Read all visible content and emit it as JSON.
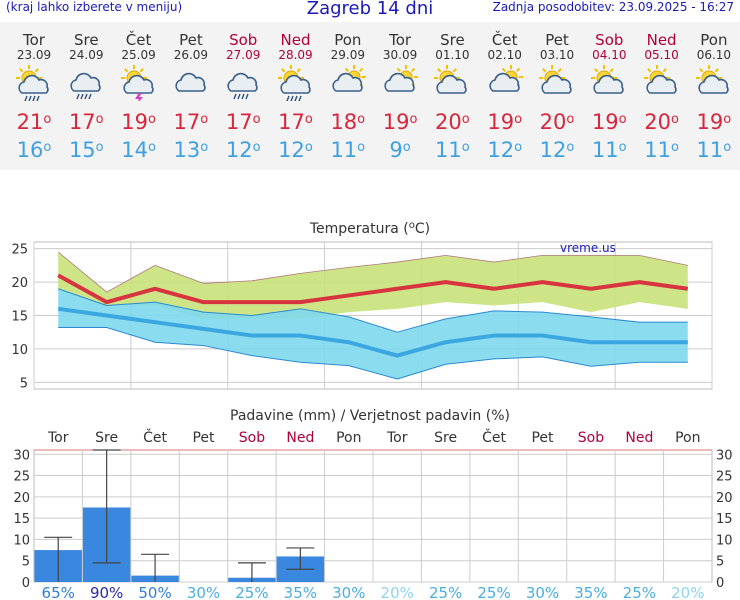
{
  "header": {
    "left_note": "(kraj lahko izberete v meniju)",
    "title": "Zagreb 14 dni",
    "updated": "Zadnja posodobitev: 23.09.2025 - 16:27"
  },
  "degree_symbol": "o",
  "days": [
    {
      "name": "Tor",
      "date": "23.09",
      "icon": "sun-cloud-rain-icon",
      "max": "21",
      "min": "16",
      "weekend": false
    },
    {
      "name": "Sre",
      "date": "24.09",
      "icon": "cloud-rain-icon",
      "max": "17",
      "min": "15",
      "weekend": false
    },
    {
      "name": "Čet",
      "date": "25.09",
      "icon": "sun-cloud-storm-icon",
      "max": "19",
      "min": "14",
      "weekend": false
    },
    {
      "name": "Pet",
      "date": "26.09",
      "icon": "cloud-icon",
      "max": "17",
      "min": "13",
      "weekend": false
    },
    {
      "name": "Sob",
      "date": "27.09",
      "icon": "cloud-rain-icon",
      "max": "17",
      "min": "12",
      "weekend": true
    },
    {
      "name": "Ned",
      "date": "28.09",
      "icon": "sun-cloud-rain-icon",
      "max": "17",
      "min": "12",
      "weekend": true
    },
    {
      "name": "Pon",
      "date": "29.09",
      "icon": "cloud-sun-icon",
      "max": "18",
      "min": "11",
      "weekend": false
    },
    {
      "name": "Tor",
      "date": "30.09",
      "icon": "cloud-sun-icon",
      "max": "19",
      "min": "9",
      "weekend": false
    },
    {
      "name": "Sre",
      "date": "01.10",
      "icon": "sun-cloud-icon",
      "max": "20",
      "min": "11",
      "weekend": false
    },
    {
      "name": "Čet",
      "date": "02.10",
      "icon": "cloud-sun-icon",
      "max": "19",
      "min": "12",
      "weekend": false
    },
    {
      "name": "Pet",
      "date": "03.10",
      "icon": "sun-cloud-icon",
      "max": "20",
      "min": "12",
      "weekend": false
    },
    {
      "name": "Sob",
      "date": "04.10",
      "icon": "sun-cloud-icon",
      "max": "19",
      "min": "11",
      "weekend": true
    },
    {
      "name": "Ned",
      "date": "05.10",
      "icon": "sun-cloud-icon",
      "max": "20",
      "min": "11",
      "weekend": true
    },
    {
      "name": "Pon",
      "date": "06.10",
      "icon": "sun-cloud-icon",
      "max": "19",
      "min": "11",
      "weekend": false
    }
  ],
  "colors": {
    "max_line": "#d7343f",
    "min_line": "#3ba7e0",
    "max_band": "#c8e27a",
    "min_band": "#7fd8ee",
    "overlap": "#7cc67c",
    "bar": "#3a87e0",
    "weekend": "#b0003a",
    "grid": "#cccccc"
  },
  "chart_data": [
    {
      "type": "area",
      "title": "Temperatura (°C)",
      "title_text": "Temperatura (",
      "title_unit": "C)",
      "watermark": "vreme.us",
      "ylim": [
        4,
        26
      ],
      "yticks": [
        5,
        10,
        15,
        20,
        25
      ],
      "x": [
        "23.09",
        "24.09",
        "25.09",
        "26.09",
        "27.09",
        "28.09",
        "29.09",
        "30.09",
        "01.10",
        "02.10",
        "03.10",
        "04.10",
        "05.10",
        "06.10"
      ],
      "series": [
        {
          "name": "max",
          "values": [
            21,
            17,
            19,
            17,
            17,
            17,
            18,
            19,
            20,
            19,
            20,
            19,
            20,
            19
          ]
        },
        {
          "name": "max_high",
          "values": [
            24.5,
            18.5,
            22.5,
            19.8,
            20.2,
            21.3,
            22.2,
            23.0,
            24.0,
            23.0,
            24.0,
            24.0,
            24.0,
            22.5
          ]
        },
        {
          "name": "max_low",
          "values": [
            18.8,
            16.5,
            16.5,
            14.5,
            14.5,
            14.5,
            15.5,
            16.0,
            17.0,
            16.5,
            17.0,
            15.5,
            17.0,
            16.0
          ]
        },
        {
          "name": "min",
          "values": [
            16,
            15,
            14,
            13,
            12,
            12,
            11,
            9,
            11,
            12,
            12,
            11,
            11,
            11
          ]
        },
        {
          "name": "min_high",
          "values": [
            19.0,
            16.5,
            17.0,
            15.5,
            15.0,
            16.0,
            14.8,
            12.5,
            14.5,
            15.7,
            15.5,
            14.8,
            14.0,
            14.0
          ]
        },
        {
          "name": "min_low",
          "values": [
            13.2,
            13.2,
            11.0,
            10.5,
            9.0,
            8.0,
            7.5,
            5.5,
            7.7,
            8.5,
            8.8,
            7.4,
            8.0,
            8.0
          ]
        }
      ]
    },
    {
      "type": "bar",
      "title": "Padavine (mm) / Verjetnost padavin (%)",
      "categories": [
        "Tor",
        "Sre",
        "Čet",
        "Pet",
        "Sob",
        "Ned",
        "Pon",
        "Tor",
        "Sre",
        "Čet",
        "Pet",
        "Sob",
        "Ned",
        "Pon"
      ],
      "weekend": [
        false,
        false,
        false,
        false,
        true,
        true,
        false,
        false,
        false,
        false,
        false,
        true,
        true,
        false
      ],
      "values": [
        7.5,
        17.5,
        1.5,
        0,
        1.0,
        6.0,
        0,
        0,
        0,
        0,
        0,
        0,
        0,
        0
      ],
      "err_low": [
        0,
        4.5,
        0,
        0,
        0,
        3.0,
        0,
        0,
        0,
        0,
        0,
        0,
        0,
        0
      ],
      "err_high": [
        10.5,
        31,
        6.5,
        0,
        4.5,
        8.0,
        0,
        0,
        0,
        0,
        0,
        0,
        0,
        0
      ],
      "probability": [
        "65%",
        "90%",
        "50%",
        "30%",
        "25%",
        "35%",
        "30%",
        "20%",
        "25%",
        "25%",
        "30%",
        "35%",
        "25%",
        "20%"
      ],
      "prob_values": [
        65,
        90,
        50,
        30,
        25,
        35,
        30,
        20,
        25,
        25,
        30,
        35,
        25,
        20
      ],
      "ylim": [
        0,
        31
      ],
      "yticks": [
        0,
        5,
        10,
        15,
        20,
        25,
        30
      ]
    }
  ]
}
